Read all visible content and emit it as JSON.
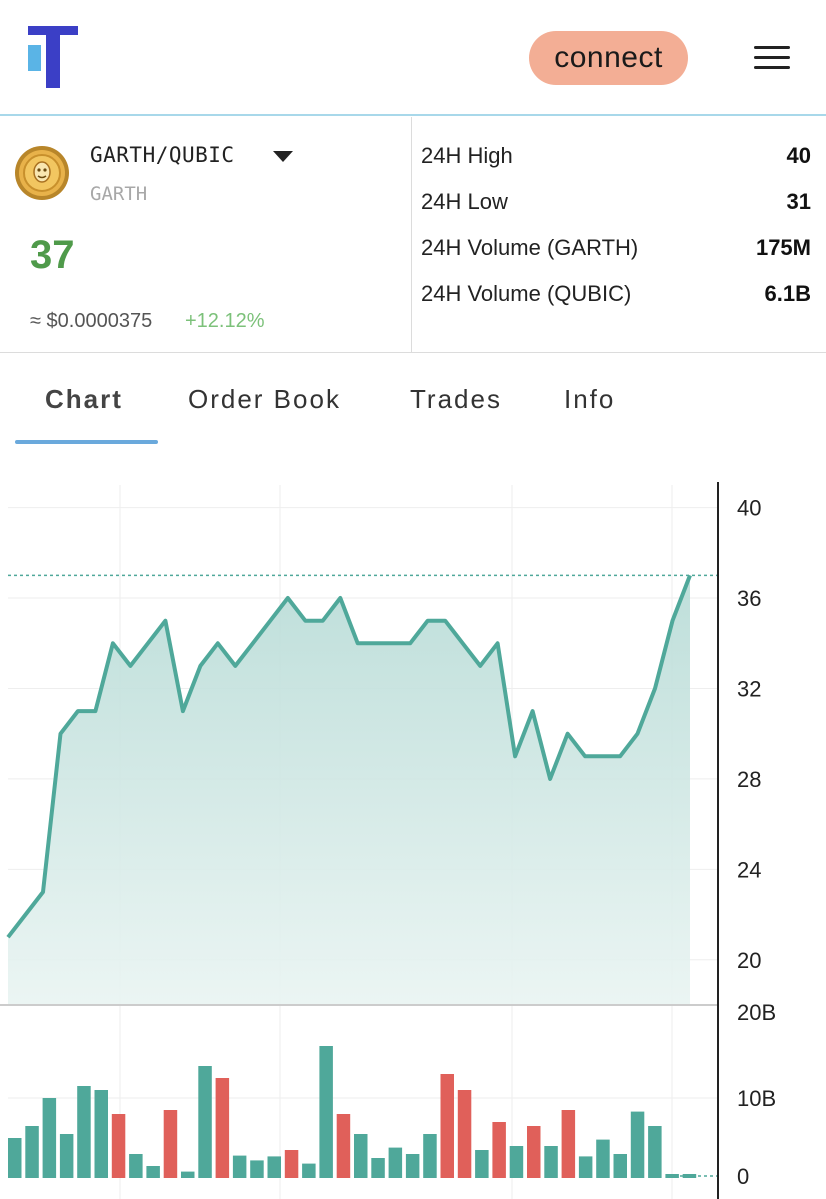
{
  "header": {
    "logo": "tradepage-logo",
    "connect_label": "connect",
    "menu_icon": "hamburger-menu-icon"
  },
  "ticker": {
    "pair": "GARTH/QUBIC",
    "base": "GARTH",
    "coin_icon": "garth-coin-icon",
    "price": "37",
    "usd_price": "≈ $0.0000375",
    "change": "+12.12%",
    "stats": [
      {
        "label": "24H High",
        "value": "40"
      },
      {
        "label": "24H Low",
        "value": "31"
      },
      {
        "label": "24H Volume (GARTH)",
        "value": "175M"
      },
      {
        "label": "24H Volume (QUBIC)",
        "value": "6.1B"
      }
    ]
  },
  "tabs": [
    {
      "label": "Chart",
      "active": true
    },
    {
      "label": "Order Book",
      "active": false
    },
    {
      "label": "Trades",
      "active": false
    },
    {
      "label": "Info",
      "active": false
    }
  ],
  "colors": {
    "price_green": "#4f9a4a",
    "line": "#4fa89a",
    "up_bar": "#4fa89a",
    "down_bar": "#e0605a",
    "connect_bg": "#f3ae95",
    "tab_underline": "#6aa9dc"
  },
  "chart_data": [
    {
      "type": "area",
      "y_ticks": [
        "40",
        "36",
        "32",
        "28",
        "24",
        "20"
      ],
      "ylim": [
        18,
        41
      ],
      "last_price": 37,
      "values": [
        21,
        22,
        23,
        30,
        31,
        31,
        34,
        33,
        34,
        35,
        31,
        33,
        34,
        33,
        34,
        35,
        36,
        35,
        35,
        36,
        34,
        34,
        34,
        34,
        35,
        35,
        34,
        33,
        34,
        29,
        31,
        28,
        30,
        29,
        29,
        29,
        30,
        32,
        35,
        37
      ]
    },
    {
      "type": "bar",
      "y_ticks": [
        "20B",
        "10B",
        "0"
      ],
      "ylim": [
        0,
        20
      ],
      "values": [
        5,
        6.5,
        10,
        5.5,
        11.5,
        11,
        8,
        3,
        1.5,
        8.5,
        0.8,
        14,
        12.5,
        2.8,
        2.2,
        2.7,
        3.5,
        1.8,
        16.5,
        8,
        5.5,
        2.5,
        3.8,
        3,
        5.5,
        13,
        11,
        3.5,
        7,
        4,
        6.5,
        4,
        8.5,
        2.7,
        4.8,
        3,
        8.3,
        6.5,
        0.5,
        0.5
      ],
      "directions": [
        "up",
        "up",
        "up",
        "up",
        "up",
        "up",
        "down",
        "up",
        "up",
        "down",
        "up",
        "up",
        "down",
        "up",
        "up",
        "up",
        "down",
        "up",
        "up",
        "down",
        "up",
        "up",
        "up",
        "up",
        "up",
        "down",
        "down",
        "up",
        "down",
        "up",
        "down",
        "up",
        "down",
        "up",
        "up",
        "up",
        "up",
        "up",
        "up",
        "up"
      ]
    }
  ]
}
